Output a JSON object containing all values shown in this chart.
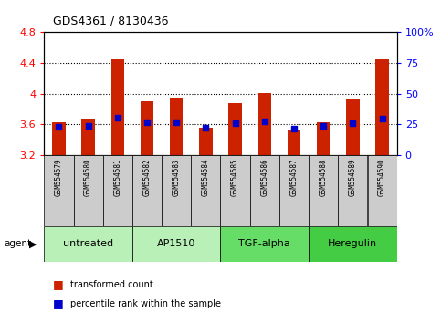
{
  "title": "GDS4361 / 8130436",
  "samples": [
    "GSM554579",
    "GSM554580",
    "GSM554581",
    "GSM554582",
    "GSM554583",
    "GSM554584",
    "GSM554585",
    "GSM554586",
    "GSM554587",
    "GSM554588",
    "GSM554589",
    "GSM554590"
  ],
  "red_values": [
    3.63,
    3.67,
    4.45,
    3.9,
    3.95,
    3.55,
    3.88,
    4.01,
    3.52,
    3.63,
    3.93,
    4.45
  ],
  "blue_values": [
    3.565,
    3.585,
    3.685,
    3.625,
    3.63,
    3.555,
    3.62,
    3.635,
    3.548,
    3.575,
    3.62,
    3.68
  ],
  "ylim_left": [
    3.2,
    4.8
  ],
  "yticks_left": [
    3.2,
    3.6,
    4.0,
    4.4,
    4.8
  ],
  "yticks_right": [
    0,
    25,
    50,
    75,
    100
  ],
  "ytick_labels_right": [
    "0",
    "25",
    "50",
    "75",
    "100%"
  ],
  "bar_bottom": 3.2,
  "groups": [
    {
      "label": "untreated",
      "start": 0,
      "end": 3
    },
    {
      "label": "AP1510",
      "start": 3,
      "end": 6
    },
    {
      "label": "TGF-alpha",
      "start": 6,
      "end": 9
    },
    {
      "label": "Heregulin",
      "start": 9,
      "end": 12
    }
  ],
  "group_colors": [
    "#b8f0b8",
    "#b8f0b8",
    "#66dd66",
    "#44cc44"
  ],
  "red_color": "#cc2200",
  "blue_color": "#0000cc",
  "bar_width": 0.45,
  "blue_marker_size": 4,
  "legend_red": "transformed count",
  "legend_blue": "percentile rank within the sample",
  "agent_text": "agent",
  "grid_yticks": [
    3.6,
    4.0,
    4.4
  ]
}
